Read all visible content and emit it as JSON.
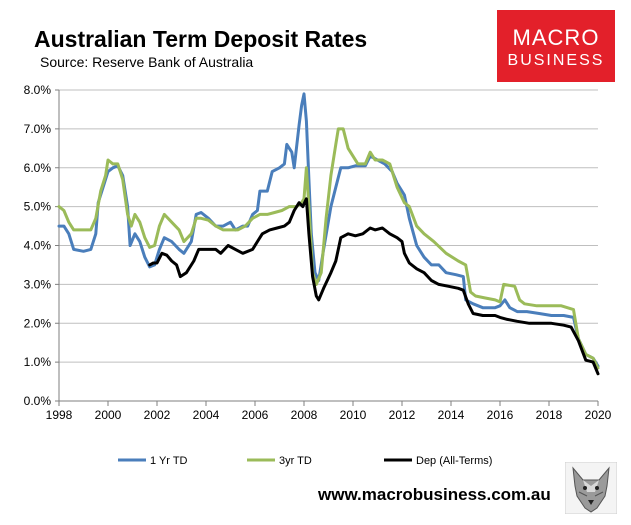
{
  "header": {
    "title": "Australian Term Deposit Rates",
    "subtitle": "Source: Reserve Bank of Australia"
  },
  "logo": {
    "line1": "MACRO",
    "line2": "BUSINESS",
    "color": "#e3202a"
  },
  "footer": {
    "url": "www.macrobusiness.com.au",
    "icon": "wolf-icon"
  },
  "chart_data": {
    "type": "line",
    "title": "Australian Term Deposit Rates",
    "subtitle": "Source: Reserve Bank of Australia",
    "xlabel": "",
    "ylabel": "",
    "xlim": [
      1998,
      2020
    ],
    "ylim": [
      0,
      8
    ],
    "x_ticks": [
      "1998",
      "2000",
      "2002",
      "2004",
      "2006",
      "2008",
      "2010",
      "2012",
      "2014",
      "2016",
      "2018",
      "2020"
    ],
    "y_ticks": [
      "0.0%",
      "1.0%",
      "2.0%",
      "3.0%",
      "4.0%",
      "5.0%",
      "6.0%",
      "7.0%",
      "8.0%"
    ],
    "grid": "y",
    "legend_position": "bottom",
    "series": [
      {
        "name": "1 Yr TD",
        "color": "#4a7ebb",
        "points": [
          [
            1998.0,
            4.5
          ],
          [
            1998.2,
            4.5
          ],
          [
            1998.4,
            4.3
          ],
          [
            1998.6,
            3.9
          ],
          [
            1999.0,
            3.85
          ],
          [
            1999.3,
            3.9
          ],
          [
            1999.5,
            4.3
          ],
          [
            1999.6,
            5.1
          ],
          [
            1999.8,
            5.5
          ],
          [
            2000.0,
            5.9
          ],
          [
            2000.2,
            6.0
          ],
          [
            2000.4,
            6.05
          ],
          [
            2000.6,
            5.8
          ],
          [
            2000.8,
            5.0
          ],
          [
            2000.9,
            4.0
          ],
          [
            2001.1,
            4.3
          ],
          [
            2001.3,
            4.1
          ],
          [
            2001.5,
            3.7
          ],
          [
            2001.7,
            3.45
          ],
          [
            2001.9,
            3.5
          ],
          [
            2002.1,
            3.9
          ],
          [
            2002.3,
            4.2
          ],
          [
            2002.6,
            4.1
          ],
          [
            2002.9,
            3.9
          ],
          [
            2003.1,
            3.8
          ],
          [
            2003.4,
            4.1
          ],
          [
            2003.6,
            4.8
          ],
          [
            2003.8,
            4.85
          ],
          [
            2004.1,
            4.7
          ],
          [
            2004.4,
            4.5
          ],
          [
            2004.7,
            4.5
          ],
          [
            2005.0,
            4.6
          ],
          [
            2005.2,
            4.4
          ],
          [
            2005.5,
            4.5
          ],
          [
            2005.7,
            4.5
          ],
          [
            2005.9,
            4.8
          ],
          [
            2006.1,
            4.9
          ],
          [
            2006.2,
            5.4
          ],
          [
            2006.5,
            5.4
          ],
          [
            2006.7,
            5.9
          ],
          [
            2007.0,
            6.0
          ],
          [
            2007.2,
            6.1
          ],
          [
            2007.3,
            6.6
          ],
          [
            2007.5,
            6.4
          ],
          [
            2007.6,
            6.0
          ],
          [
            2007.8,
            7.1
          ],
          [
            2007.9,
            7.6
          ],
          [
            2008.0,
            7.9
          ],
          [
            2008.1,
            7.2
          ],
          [
            2008.2,
            5.7
          ],
          [
            2008.3,
            4.3
          ],
          [
            2008.45,
            3.3
          ],
          [
            2008.6,
            3.1
          ],
          [
            2008.8,
            3.9
          ],
          [
            2009.1,
            5.0
          ],
          [
            2009.3,
            5.5
          ],
          [
            2009.5,
            6.0
          ],
          [
            2009.8,
            6.0
          ],
          [
            2010.1,
            6.05
          ],
          [
            2010.5,
            6.05
          ],
          [
            2010.7,
            6.3
          ],
          [
            2011.0,
            6.2
          ],
          [
            2011.3,
            6.1
          ],
          [
            2011.6,
            5.9
          ],
          [
            2011.8,
            5.6
          ],
          [
            2012.1,
            5.3
          ],
          [
            2012.3,
            4.7
          ],
          [
            2012.6,
            4.0
          ],
          [
            2012.9,
            3.7
          ],
          [
            2013.2,
            3.5
          ],
          [
            2013.5,
            3.5
          ],
          [
            2013.8,
            3.3
          ],
          [
            2014.2,
            3.25
          ],
          [
            2014.5,
            3.2
          ],
          [
            2014.6,
            2.6
          ],
          [
            2014.9,
            2.5
          ],
          [
            2015.3,
            2.4
          ],
          [
            2015.8,
            2.4
          ],
          [
            2016.0,
            2.45
          ],
          [
            2016.2,
            2.6
          ],
          [
            2016.4,
            2.4
          ],
          [
            2016.7,
            2.3
          ],
          [
            2017.1,
            2.3
          ],
          [
            2017.6,
            2.25
          ],
          [
            2018.1,
            2.2
          ],
          [
            2018.6,
            2.2
          ],
          [
            2019.0,
            2.15
          ],
          [
            2019.2,
            1.6
          ],
          [
            2019.5,
            1.2
          ],
          [
            2019.8,
            1.1
          ],
          [
            2020.0,
            0.9
          ]
        ]
      },
      {
        "name": "3yr TD",
        "color": "#9bbb59",
        "points": [
          [
            1998.0,
            5.0
          ],
          [
            1998.2,
            4.9
          ],
          [
            1998.4,
            4.6
          ],
          [
            1998.6,
            4.4
          ],
          [
            1999.0,
            4.4
          ],
          [
            1999.3,
            4.4
          ],
          [
            1999.5,
            4.7
          ],
          [
            1999.7,
            5.4
          ],
          [
            1999.9,
            5.8
          ],
          [
            2000.0,
            6.2
          ],
          [
            2000.2,
            6.1
          ],
          [
            2000.4,
            6.1
          ],
          [
            2000.6,
            5.7
          ],
          [
            2000.8,
            4.8
          ],
          [
            2000.95,
            4.5
          ],
          [
            2001.1,
            4.8
          ],
          [
            2001.3,
            4.6
          ],
          [
            2001.5,
            4.2
          ],
          [
            2001.7,
            3.95
          ],
          [
            2001.9,
            4.0
          ],
          [
            2002.1,
            4.5
          ],
          [
            2002.3,
            4.8
          ],
          [
            2002.6,
            4.6
          ],
          [
            2002.9,
            4.4
          ],
          [
            2003.1,
            4.1
          ],
          [
            2003.4,
            4.3
          ],
          [
            2003.6,
            4.7
          ],
          [
            2003.8,
            4.7
          ],
          [
            2004.1,
            4.65
          ],
          [
            2004.4,
            4.5
          ],
          [
            2004.7,
            4.4
          ],
          [
            2005.0,
            4.4
          ],
          [
            2005.3,
            4.4
          ],
          [
            2005.6,
            4.5
          ],
          [
            2005.9,
            4.7
          ],
          [
            2006.2,
            4.8
          ],
          [
            2006.5,
            4.8
          ],
          [
            2006.8,
            4.85
          ],
          [
            2007.1,
            4.9
          ],
          [
            2007.4,
            5.0
          ],
          [
            2007.7,
            5.0
          ],
          [
            2007.9,
            5.1
          ],
          [
            2008.0,
            5.2
          ],
          [
            2008.1,
            6.0
          ],
          [
            2008.2,
            5.0
          ],
          [
            2008.35,
            3.3
          ],
          [
            2008.5,
            3.0
          ],
          [
            2008.7,
            3.3
          ],
          [
            2008.9,
            4.7
          ],
          [
            2009.1,
            5.8
          ],
          [
            2009.3,
            6.6
          ],
          [
            2009.4,
            7.0
          ],
          [
            2009.6,
            7.0
          ],
          [
            2009.8,
            6.5
          ],
          [
            2010.2,
            6.1
          ],
          [
            2010.5,
            6.1
          ],
          [
            2010.7,
            6.4
          ],
          [
            2010.9,
            6.2
          ],
          [
            2011.2,
            6.2
          ],
          [
            2011.5,
            6.1
          ],
          [
            2011.8,
            5.5
          ],
          [
            2012.1,
            5.1
          ],
          [
            2012.3,
            5.0
          ],
          [
            2012.6,
            4.5
          ],
          [
            2012.9,
            4.3
          ],
          [
            2013.3,
            4.1
          ],
          [
            2013.8,
            3.8
          ],
          [
            2014.3,
            3.6
          ],
          [
            2014.6,
            3.5
          ],
          [
            2014.8,
            2.8
          ],
          [
            2015.0,
            2.7
          ],
          [
            2015.4,
            2.65
          ],
          [
            2015.8,
            2.6
          ],
          [
            2016.0,
            2.55
          ],
          [
            2016.15,
            3.0
          ],
          [
            2016.6,
            2.95
          ],
          [
            2016.8,
            2.6
          ],
          [
            2017.0,
            2.5
          ],
          [
            2017.5,
            2.45
          ],
          [
            2018.1,
            2.45
          ],
          [
            2018.5,
            2.45
          ],
          [
            2019.0,
            2.35
          ],
          [
            2019.2,
            1.6
          ],
          [
            2019.5,
            1.2
          ],
          [
            2019.8,
            1.1
          ],
          [
            2020.0,
            0.85
          ]
        ]
      },
      {
        "name": "Dep (All-Terms)",
        "color": "#000000",
        "points": [
          [
            2001.7,
            3.5
          ],
          [
            2001.85,
            3.55
          ],
          [
            2002.0,
            3.55
          ],
          [
            2002.2,
            3.8
          ],
          [
            2002.4,
            3.75
          ],
          [
            2002.6,
            3.6
          ],
          [
            2002.8,
            3.5
          ],
          [
            2002.95,
            3.2
          ],
          [
            2003.2,
            3.3
          ],
          [
            2003.5,
            3.6
          ],
          [
            2003.7,
            3.9
          ],
          [
            2004.1,
            3.9
          ],
          [
            2004.4,
            3.9
          ],
          [
            2004.6,
            3.8
          ],
          [
            2004.9,
            4.0
          ],
          [
            2005.2,
            3.9
          ],
          [
            2005.5,
            3.8
          ],
          [
            2005.9,
            3.9
          ],
          [
            2006.1,
            4.1
          ],
          [
            2006.3,
            4.3
          ],
          [
            2006.6,
            4.4
          ],
          [
            2006.9,
            4.45
          ],
          [
            2007.2,
            4.5
          ],
          [
            2007.4,
            4.6
          ],
          [
            2007.6,
            4.9
          ],
          [
            2007.8,
            5.1
          ],
          [
            2007.95,
            5.0
          ],
          [
            2008.1,
            5.2
          ],
          [
            2008.2,
            4.3
          ],
          [
            2008.35,
            3.2
          ],
          [
            2008.5,
            2.7
          ],
          [
            2008.6,
            2.6
          ],
          [
            2008.8,
            2.9
          ],
          [
            2009.1,
            3.3
          ],
          [
            2009.3,
            3.6
          ],
          [
            2009.5,
            4.2
          ],
          [
            2009.8,
            4.3
          ],
          [
            2010.1,
            4.25
          ],
          [
            2010.4,
            4.3
          ],
          [
            2010.7,
            4.45
          ],
          [
            2010.9,
            4.4
          ],
          [
            2011.2,
            4.45
          ],
          [
            2011.5,
            4.3
          ],
          [
            2011.8,
            4.2
          ],
          [
            2012.0,
            4.1
          ],
          [
            2012.1,
            3.8
          ],
          [
            2012.3,
            3.55
          ],
          [
            2012.6,
            3.4
          ],
          [
            2012.9,
            3.3
          ],
          [
            2013.2,
            3.1
          ],
          [
            2013.5,
            3.0
          ],
          [
            2013.9,
            2.95
          ],
          [
            2014.3,
            2.9
          ],
          [
            2014.5,
            2.85
          ],
          [
            2014.7,
            2.5
          ],
          [
            2014.9,
            2.25
          ],
          [
            2015.3,
            2.2
          ],
          [
            2015.8,
            2.2
          ],
          [
            2016.0,
            2.15
          ],
          [
            2016.3,
            2.1
          ],
          [
            2016.7,
            2.05
          ],
          [
            2017.2,
            2.0
          ],
          [
            2017.7,
            2.0
          ],
          [
            2018.1,
            2.0
          ],
          [
            2018.6,
            1.95
          ],
          [
            2018.9,
            1.9
          ],
          [
            2019.2,
            1.55
          ],
          [
            2019.5,
            1.05
          ],
          [
            2019.8,
            1.0
          ],
          [
            2019.9,
            0.85
          ],
          [
            2020.0,
            0.7
          ]
        ]
      }
    ]
  }
}
